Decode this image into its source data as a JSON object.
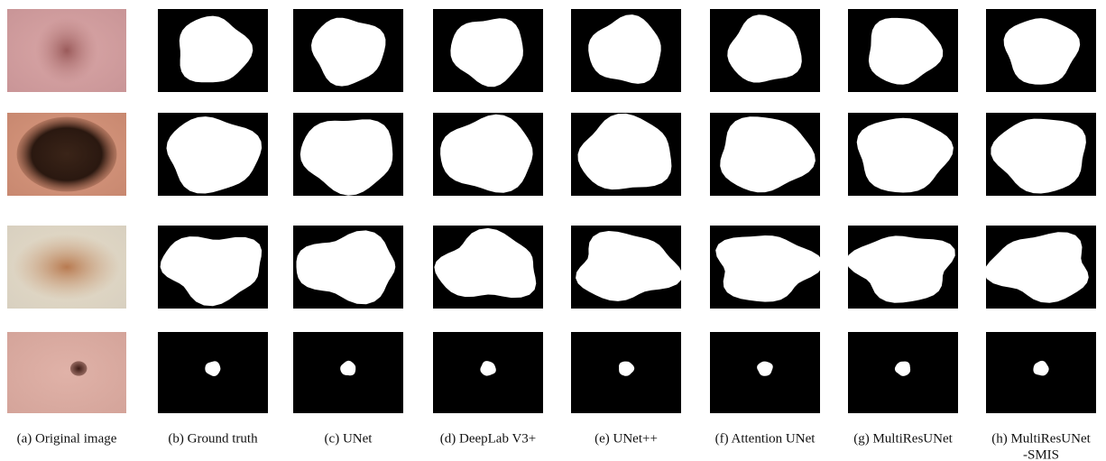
{
  "captions": [
    [
      "(a) Original image"
    ],
    [
      "(b) Ground truth"
    ],
    [
      "(c) UNet"
    ],
    [
      "(d) DeepLab V3+"
    ],
    [
      "(e) UNet++"
    ],
    [
      "(f) Attention UNet"
    ],
    [
      "(g) MultiResUNet"
    ],
    [
      "(h) MultiResUNet",
      "-SMIS"
    ]
  ]
}
